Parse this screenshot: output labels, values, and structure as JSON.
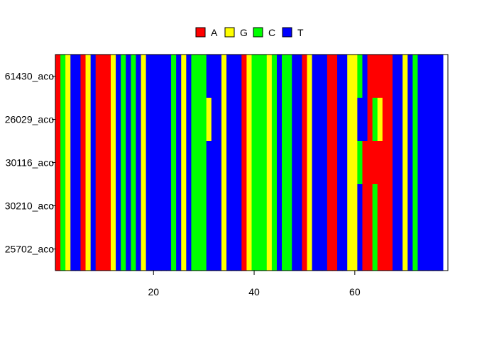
{
  "chart_data": {
    "type": "heatmap",
    "title": "",
    "xlabel": "",
    "ylabel": "",
    "xlim": [
      0.5,
      78.5
    ],
    "x_ticks": [
      20,
      40,
      60
    ],
    "legend_position": "top",
    "legend": [
      {
        "label": "A",
        "color": "#ff0000"
      },
      {
        "label": "G",
        "color": "#ffff00"
      },
      {
        "label": "C",
        "color": "#00ff00"
      },
      {
        "label": "T",
        "color": "#0000ff"
      }
    ],
    "rows": [
      "61430_aco",
      "26029_aco",
      "30116_aco",
      "30210_aco",
      "25702_aco"
    ],
    "base_sequence": "ACGTTAGTAAAGTCTCTGTTTTTCTGTCCCTTTGTTTAGCCCGCTCCTTAGTTTAATTGGCTAAAAATTGTCTTTTT",
    "variants": [
      {
        "row": 1,
        "position": 31,
        "base": "G"
      },
      {
        "row": 1,
        "position": 47,
        "base": "C"
      },
      {
        "row": 1,
        "position": 61,
        "base": "T"
      },
      {
        "row": 1,
        "position": 64,
        "base": "C"
      },
      {
        "row": 1,
        "position": 65,
        "base": "G"
      },
      {
        "row": 2,
        "position": 61,
        "base": "C"
      },
      {
        "row": 2,
        "position": 62,
        "base": "A"
      },
      {
        "row": 3,
        "position": 61,
        "base": "T"
      },
      {
        "row": 3,
        "position": 62,
        "base": "A"
      },
      {
        "row": 3,
        "position": 64,
        "base": "C"
      },
      {
        "row": 4,
        "position": 61,
        "base": "T"
      },
      {
        "row": 4,
        "position": 62,
        "base": "A"
      },
      {
        "row": 4,
        "position": 64,
        "base": "C"
      }
    ]
  }
}
